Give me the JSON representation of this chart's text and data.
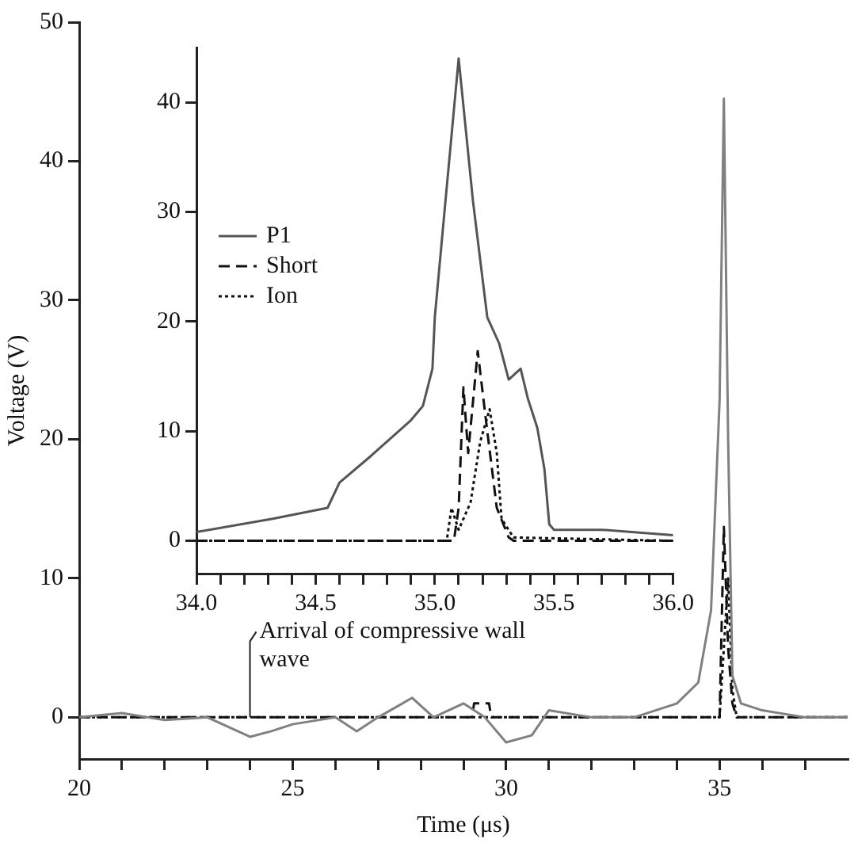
{
  "chart_data": [
    {
      "type": "line",
      "xlabel": "Time (μs)",
      "ylabel": "Voltage (V)",
      "xlim": [
        20,
        38
      ],
      "ylim": [
        -3,
        50
      ],
      "xticks": [
        20,
        {
          "value": 21,
          "label": null
        },
        {
          "value": 22,
          "label": null
        },
        {
          "value": 23,
          "label": null
        },
        {
          "value": 24,
          "label": null
        },
        25,
        {
          "value": 26,
          "label": null
        },
        {
          "value": 27,
          "label": null
        },
        {
          "value": 28,
          "label": null
        },
        {
          "value": 29,
          "label": null
        },
        30,
        {
          "value": 31,
          "label": null
        },
        {
          "value": 32,
          "label": null
        },
        {
          "value": 33,
          "label": null
        },
        {
          "value": 34,
          "label": null
        },
        35,
        {
          "value": 36,
          "label": null
        },
        {
          "value": 37,
          "label": null
        }
      ],
      "yticks": [
        0,
        10,
        20,
        30,
        40,
        50
      ],
      "grid": false,
      "legend": false,
      "marker": "none",
      "annotations": [
        {
          "text": "Arrival of compressive wall wave",
          "x": 24,
          "y": 0
        }
      ],
      "series": [
        {
          "color": "#808080",
          "line_style": "solid",
          "x": [
            20,
            21,
            22,
            23,
            24,
            24.5,
            25,
            26,
            26.5,
            27,
            27.8,
            28.3,
            29,
            29.5,
            30,
            30.6,
            31,
            32,
            33,
            34,
            34.5,
            34.8,
            35,
            35.1,
            35.2,
            35.3,
            35.5,
            36,
            37,
            38
          ],
          "values": [
            0,
            0.3,
            -0.2,
            0,
            -1.4,
            -1,
            -0.5,
            0,
            -1,
            0,
            1.4,
            0,
            1,
            0,
            -1.8,
            -1.3,
            0.5,
            0,
            0,
            1,
            2.5,
            7.7,
            22.8,
            44.5,
            20,
            3,
            1,
            0.5,
            0,
            0
          ]
        },
        {
          "color": "#111111",
          "line_style": "dashed",
          "x": [
            20,
            29.2,
            29.25,
            29.6,
            29.65,
            35,
            35.1,
            35.2,
            35.3,
            35.4,
            38
          ],
          "values": [
            0,
            0,
            1,
            1,
            0,
            0,
            13.7,
            5,
            1,
            0,
            0
          ]
        },
        {
          "color": "#111111",
          "line_style": "dotted",
          "x": [
            20,
            35,
            35.1,
            35.2,
            35.3,
            35.4,
            38
          ],
          "values": [
            0,
            0,
            5,
            10,
            2,
            0,
            0
          ]
        }
      ]
    },
    {
      "type": "line",
      "xlim": [
        34,
        36
      ],
      "ylim": [
        -3,
        45
      ],
      "xticks": [
        {
          "value": 34,
          "label": "34.0"
        },
        {
          "value": 34.1,
          "label": null
        },
        {
          "value": 34.2,
          "label": null
        },
        {
          "value": 34.3,
          "label": null
        },
        {
          "value": 34.4,
          "label": null
        },
        {
          "value": 34.5,
          "label": "34.5"
        },
        {
          "value": 34.6,
          "label": null
        },
        {
          "value": 34.7,
          "label": null
        },
        {
          "value": 34.8,
          "label": null
        },
        {
          "value": 34.9,
          "label": null
        },
        {
          "value": 35,
          "label": "35.0"
        },
        {
          "value": 35.1,
          "label": null
        },
        {
          "value": 35.2,
          "label": null
        },
        {
          "value": 35.3,
          "label": null
        },
        {
          "value": 35.4,
          "label": null
        },
        {
          "value": 35.5,
          "label": "35.5"
        },
        {
          "value": 35.6,
          "label": null
        },
        {
          "value": 35.7,
          "label": null
        },
        {
          "value": 35.8,
          "label": null
        },
        {
          "value": 35.9,
          "label": null
        },
        {
          "value": 36,
          "label": "36.0"
        }
      ],
      "yticks": [
        0,
        10,
        20,
        30,
        40
      ],
      "grid": false,
      "legend": "left",
      "marker": "none",
      "series": [
        {
          "name": "P1",
          "color": "#555555",
          "line_style": "solid",
          "x": [
            34,
            34.32,
            34.55,
            34.6,
            34.73,
            34.9,
            34.95,
            34.99,
            35,
            35.04,
            35.1,
            35.16,
            35.22,
            35.27,
            35.31,
            35.36,
            35.39,
            35.43,
            35.46,
            35.48,
            35.5,
            35.7,
            36
          ],
          "values": [
            0.8,
            2,
            3,
            5.3,
            7.7,
            11,
            12.3,
            15.7,
            20.4,
            29.9,
            44,
            31,
            20.4,
            18,
            14.7,
            15.7,
            13,
            10.3,
            6.5,
            1.5,
            1,
            1,
            0.5
          ]
        },
        {
          "name": "Short",
          "color": "#111111",
          "line_style": "dashed",
          "x": [
            34,
            35.08,
            35.1,
            35.12,
            35.14,
            35.18,
            35.22,
            35.26,
            35.31,
            35.33,
            36
          ],
          "values": [
            0,
            0,
            3,
            14,
            8,
            17.3,
            10,
            3,
            0.3,
            0,
            0
          ]
        },
        {
          "name": "Ion",
          "color": "#111111",
          "line_style": "dotted",
          "x": [
            34,
            35.05,
            35.07,
            35.1,
            35.15,
            35.19,
            35.23,
            35.26,
            35.28,
            35.33,
            36
          ],
          "values": [
            0,
            0,
            3,
            1,
            3.5,
            9,
            12,
            8,
            2,
            0.3,
            0
          ]
        }
      ]
    }
  ]
}
